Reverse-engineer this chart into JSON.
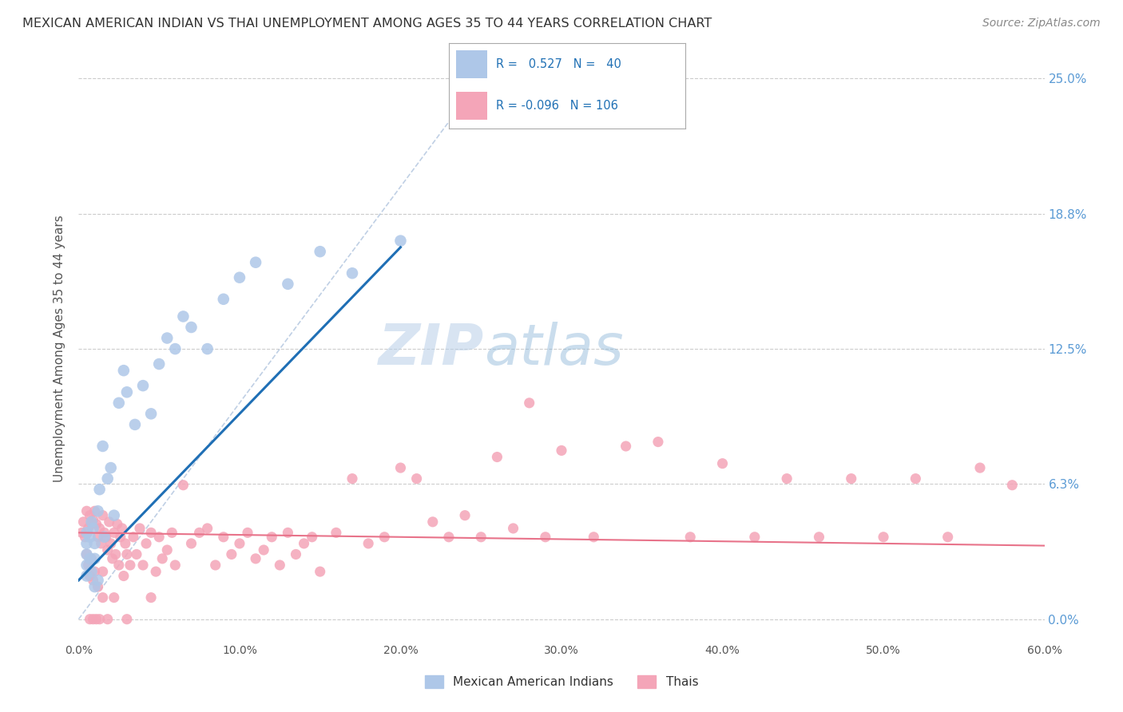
{
  "title": "MEXICAN AMERICAN INDIAN VS THAI UNEMPLOYMENT AMONG AGES 35 TO 44 YEARS CORRELATION CHART",
  "source": "Source: ZipAtlas.com",
  "ylabel": "Unemployment Among Ages 35 to 44 years",
  "r_blue": 0.527,
  "n_blue": 40,
  "r_pink": -0.096,
  "n_pink": 106,
  "xlim": [
    0.0,
    0.6
  ],
  "ylim": [
    -0.01,
    0.26
  ],
  "yticks": [
    0.0,
    0.0625,
    0.125,
    0.1875,
    0.25
  ],
  "ytick_labels_right": [
    "0.0%",
    "6.3%",
    "12.5%",
    "18.8%",
    "25.0%"
  ],
  "xticks": [
    0.0,
    0.1,
    0.2,
    0.3,
    0.4,
    0.5,
    0.6
  ],
  "xtick_labels": [
    "0.0%",
    "10.0%",
    "20.0%",
    "30.0%",
    "40.0%",
    "50.0%",
    "60.0%"
  ],
  "color_blue_scatter": "#aec7e8",
  "color_pink_scatter": "#f4a5b8",
  "color_blue_line": "#1f6fb5",
  "color_pink_line": "#e8738a",
  "color_diag": "#b0c4de",
  "watermark_zip": "ZIP",
  "watermark_atlas": "atlas",
  "legend_label_blue": "Mexican American Indians",
  "legend_label_pink": "Thais",
  "blue_x": [
    0.005,
    0.005,
    0.005,
    0.005,
    0.005,
    0.007,
    0.007,
    0.008,
    0.008,
    0.009,
    0.01,
    0.01,
    0.01,
    0.012,
    0.012,
    0.013,
    0.015,
    0.016,
    0.018,
    0.02,
    0.022,
    0.025,
    0.028,
    0.03,
    0.035,
    0.04,
    0.045,
    0.05,
    0.055,
    0.06,
    0.065,
    0.07,
    0.08,
    0.09,
    0.1,
    0.11,
    0.13,
    0.15,
    0.17,
    0.2
  ],
  "blue_y": [
    0.04,
    0.035,
    0.03,
    0.025,
    0.02,
    0.038,
    0.028,
    0.045,
    0.022,
    0.042,
    0.035,
    0.028,
    0.015,
    0.05,
    0.018,
    0.06,
    0.08,
    0.038,
    0.065,
    0.07,
    0.048,
    0.1,
    0.115,
    0.105,
    0.09,
    0.108,
    0.095,
    0.118,
    0.13,
    0.125,
    0.14,
    0.135,
    0.125,
    0.148,
    0.158,
    0.165,
    0.155,
    0.17,
    0.16,
    0.175
  ],
  "pink_x": [
    0.002,
    0.003,
    0.004,
    0.005,
    0.005,
    0.006,
    0.006,
    0.007,
    0.007,
    0.008,
    0.008,
    0.009,
    0.009,
    0.01,
    0.01,
    0.011,
    0.012,
    0.012,
    0.013,
    0.014,
    0.015,
    0.015,
    0.016,
    0.017,
    0.018,
    0.019,
    0.02,
    0.021,
    0.022,
    0.023,
    0.024,
    0.025,
    0.026,
    0.027,
    0.028,
    0.029,
    0.03,
    0.032,
    0.034,
    0.036,
    0.038,
    0.04,
    0.042,
    0.045,
    0.048,
    0.05,
    0.052,
    0.055,
    0.058,
    0.06,
    0.065,
    0.07,
    0.075,
    0.08,
    0.085,
    0.09,
    0.095,
    0.1,
    0.105,
    0.11,
    0.115,
    0.12,
    0.125,
    0.13,
    0.135,
    0.14,
    0.145,
    0.15,
    0.16,
    0.17,
    0.18,
    0.19,
    0.2,
    0.21,
    0.22,
    0.23,
    0.24,
    0.25,
    0.26,
    0.27,
    0.28,
    0.29,
    0.3,
    0.32,
    0.34,
    0.36,
    0.38,
    0.4,
    0.42,
    0.44,
    0.46,
    0.48,
    0.5,
    0.52,
    0.54,
    0.56,
    0.58,
    0.007,
    0.009,
    0.011,
    0.013,
    0.015,
    0.018,
    0.022,
    0.03,
    0.045
  ],
  "pink_y": [
    0.04,
    0.045,
    0.038,
    0.05,
    0.03,
    0.042,
    0.025,
    0.048,
    0.02,
    0.044,
    0.028,
    0.046,
    0.018,
    0.05,
    0.022,
    0.044,
    0.038,
    0.015,
    0.042,
    0.035,
    0.048,
    0.022,
    0.04,
    0.038,
    0.032,
    0.045,
    0.035,
    0.028,
    0.04,
    0.03,
    0.044,
    0.025,
    0.038,
    0.042,
    0.02,
    0.035,
    0.03,
    0.025,
    0.038,
    0.03,
    0.042,
    0.025,
    0.035,
    0.04,
    0.022,
    0.038,
    0.028,
    0.032,
    0.04,
    0.025,
    0.062,
    0.035,
    0.04,
    0.042,
    0.025,
    0.038,
    0.03,
    0.035,
    0.04,
    0.028,
    0.032,
    0.038,
    0.025,
    0.04,
    0.03,
    0.035,
    0.038,
    0.022,
    0.04,
    0.065,
    0.035,
    0.038,
    0.07,
    0.065,
    0.045,
    0.038,
    0.048,
    0.038,
    0.075,
    0.042,
    0.1,
    0.038,
    0.078,
    0.038,
    0.08,
    0.082,
    0.038,
    0.072,
    0.038,
    0.065,
    0.038,
    0.065,
    0.038,
    0.065,
    0.038,
    0.07,
    0.062,
    0.0,
    0.0,
    0.0,
    0.0,
    0.01,
    0.0,
    0.01,
    0.0,
    0.01
  ]
}
